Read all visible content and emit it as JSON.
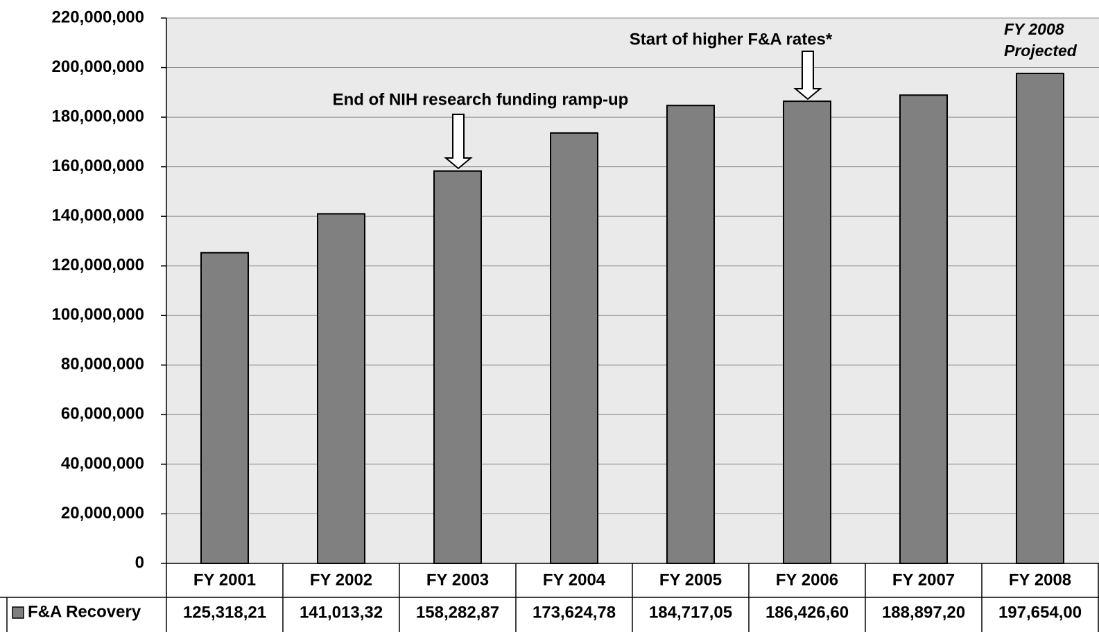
{
  "chart_data": {
    "type": "bar",
    "categories": [
      "FY 2001",
      "FY 2002",
      "FY 2003",
      "FY 2004",
      "FY 2005",
      "FY 2006",
      "FY 2007",
      "FY 2008"
    ],
    "series": [
      {
        "name": "F&A Recovery",
        "color": "#808080",
        "values": [
          125318210,
          141013320,
          158282870,
          173624780,
          184717050,
          186426600,
          188897200,
          197654000
        ],
        "value_labels": [
          "125,318,21",
          "141,013,32",
          "158,282,87",
          "173,624,78",
          "184,717,05",
          "186,426,60",
          "188,897,20",
          "197,654,00"
        ]
      }
    ],
    "ylim": [
      0,
      220000000
    ],
    "yticks": [
      0,
      {
        "value": 20000000,
        "label": "20,000,000"
      },
      {
        "value": 40000000,
        "label": "40,000,000"
      },
      {
        "value": 60000000,
        "label": "60,000,000"
      },
      {
        "value": 80000000,
        "label": "80,000,000"
      },
      {
        "value": 100000000,
        "label": "100,000,000"
      },
      {
        "value": 120000000,
        "label": "120,000,000"
      },
      {
        "value": 140000000,
        "label": "140,000,000"
      },
      {
        "value": 160000000,
        "label": "160,000,000"
      },
      {
        "value": 180000000,
        "label": "180,000,000"
      },
      {
        "value": 200000000,
        "label": "200,000,000"
      },
      {
        "value": 220000000,
        "label": "220,000,000"
      }
    ],
    "grid": true,
    "annotations": [
      "End of NIH research funding ramp-up",
      "Start of higher F&A rates*"
    ],
    "projection_note": [
      "FY 2008",
      "Projected"
    ]
  }
}
